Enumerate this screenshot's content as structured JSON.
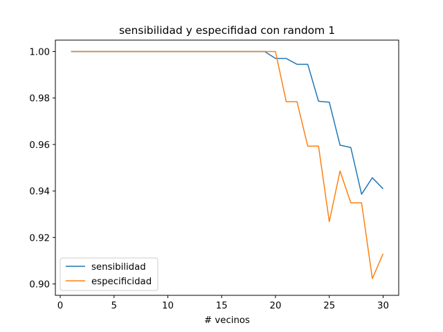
{
  "chart_data": {
    "type": "line",
    "title": "sensibilidad y especifidad con random 1",
    "xlabel": "# vecinos",
    "ylabel": "",
    "xlim": [
      -0.45,
      31.45
    ],
    "ylim": [
      0.8951,
      1.0049
    ],
    "xticks": [
      0,
      5,
      10,
      15,
      20,
      25,
      30
    ],
    "yticks": [
      0.9,
      0.92,
      0.94,
      0.96,
      0.98,
      1.0
    ],
    "ytick_labels": [
      "0.90",
      "0.92",
      "0.94",
      "0.96",
      "0.98",
      "1.00"
    ],
    "grid": false,
    "legend_position": "lower-left",
    "x": [
      1,
      2,
      3,
      4,
      5,
      6,
      7,
      8,
      9,
      10,
      11,
      12,
      13,
      14,
      15,
      16,
      17,
      18,
      19,
      20,
      21,
      22,
      23,
      24,
      25,
      26,
      27,
      28,
      29,
      30
    ],
    "series": [
      {
        "name": "sensibilidad",
        "color": "#1f77b4",
        "values": [
          1.0,
          1.0,
          1.0,
          1.0,
          1.0,
          1.0,
          1.0,
          1.0,
          1.0,
          1.0,
          1.0,
          1.0,
          1.0,
          1.0,
          1.0,
          1.0,
          1.0,
          1.0,
          1.0,
          0.997,
          0.997,
          0.9945,
          0.9945,
          0.9786,
          0.9782,
          0.9597,
          0.9587,
          0.9386,
          0.9457,
          0.9409
        ]
      },
      {
        "name": "especificidad",
        "color": "#ff7f0e",
        "values": [
          1.0,
          1.0,
          1.0,
          1.0,
          1.0,
          1.0,
          1.0,
          1.0,
          1.0,
          1.0,
          1.0,
          1.0,
          1.0,
          1.0,
          1.0,
          1.0,
          1.0,
          1.0,
          1.0,
          1.0,
          0.9784,
          0.9784,
          0.9593,
          0.9593,
          0.9268,
          0.9486,
          0.9349,
          0.9349,
          0.9023,
          0.913
        ]
      }
    ]
  }
}
